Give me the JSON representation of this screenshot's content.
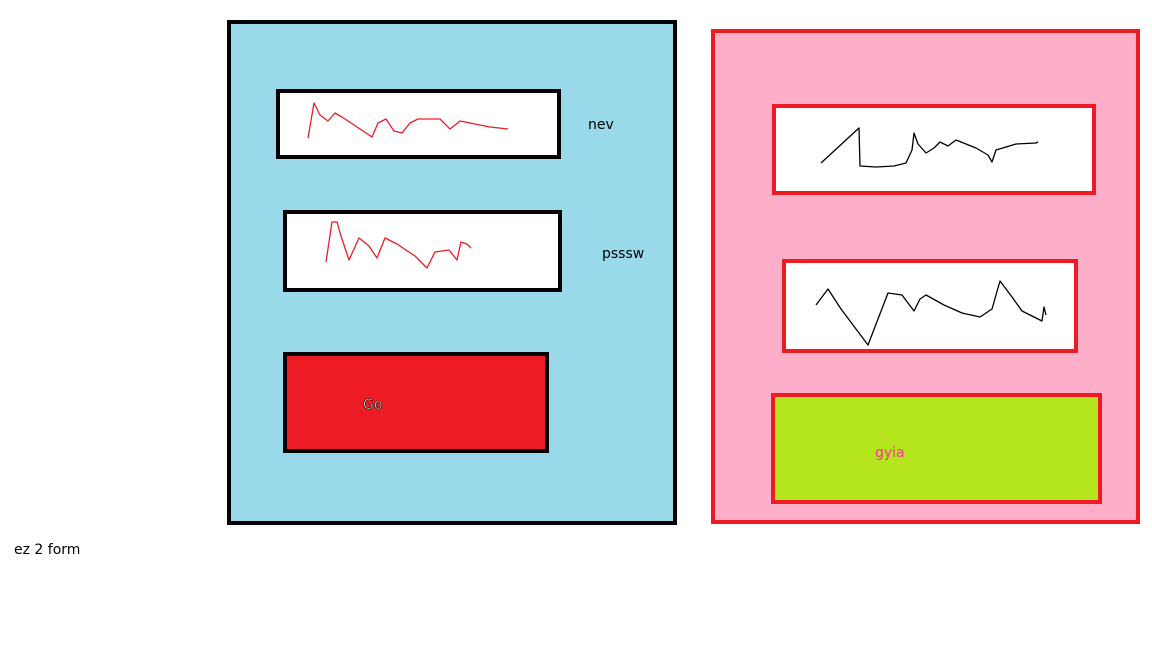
{
  "left_form": {
    "username_label": "nev",
    "password_label": "psssw",
    "submit_label": "Go",
    "colors": {
      "background": "#99d9ea",
      "border": "#000000",
      "scribble": "#ed1c24",
      "button": "#ed1c24"
    }
  },
  "right_form": {
    "submit_label": "gyia",
    "colors": {
      "background": "#ffaec9",
      "border": "#ed1c24",
      "scribble": "#000000",
      "button": "#b5e61d",
      "button_text": "#ff3399"
    }
  },
  "footer": {
    "caption": "ez 2 form"
  }
}
